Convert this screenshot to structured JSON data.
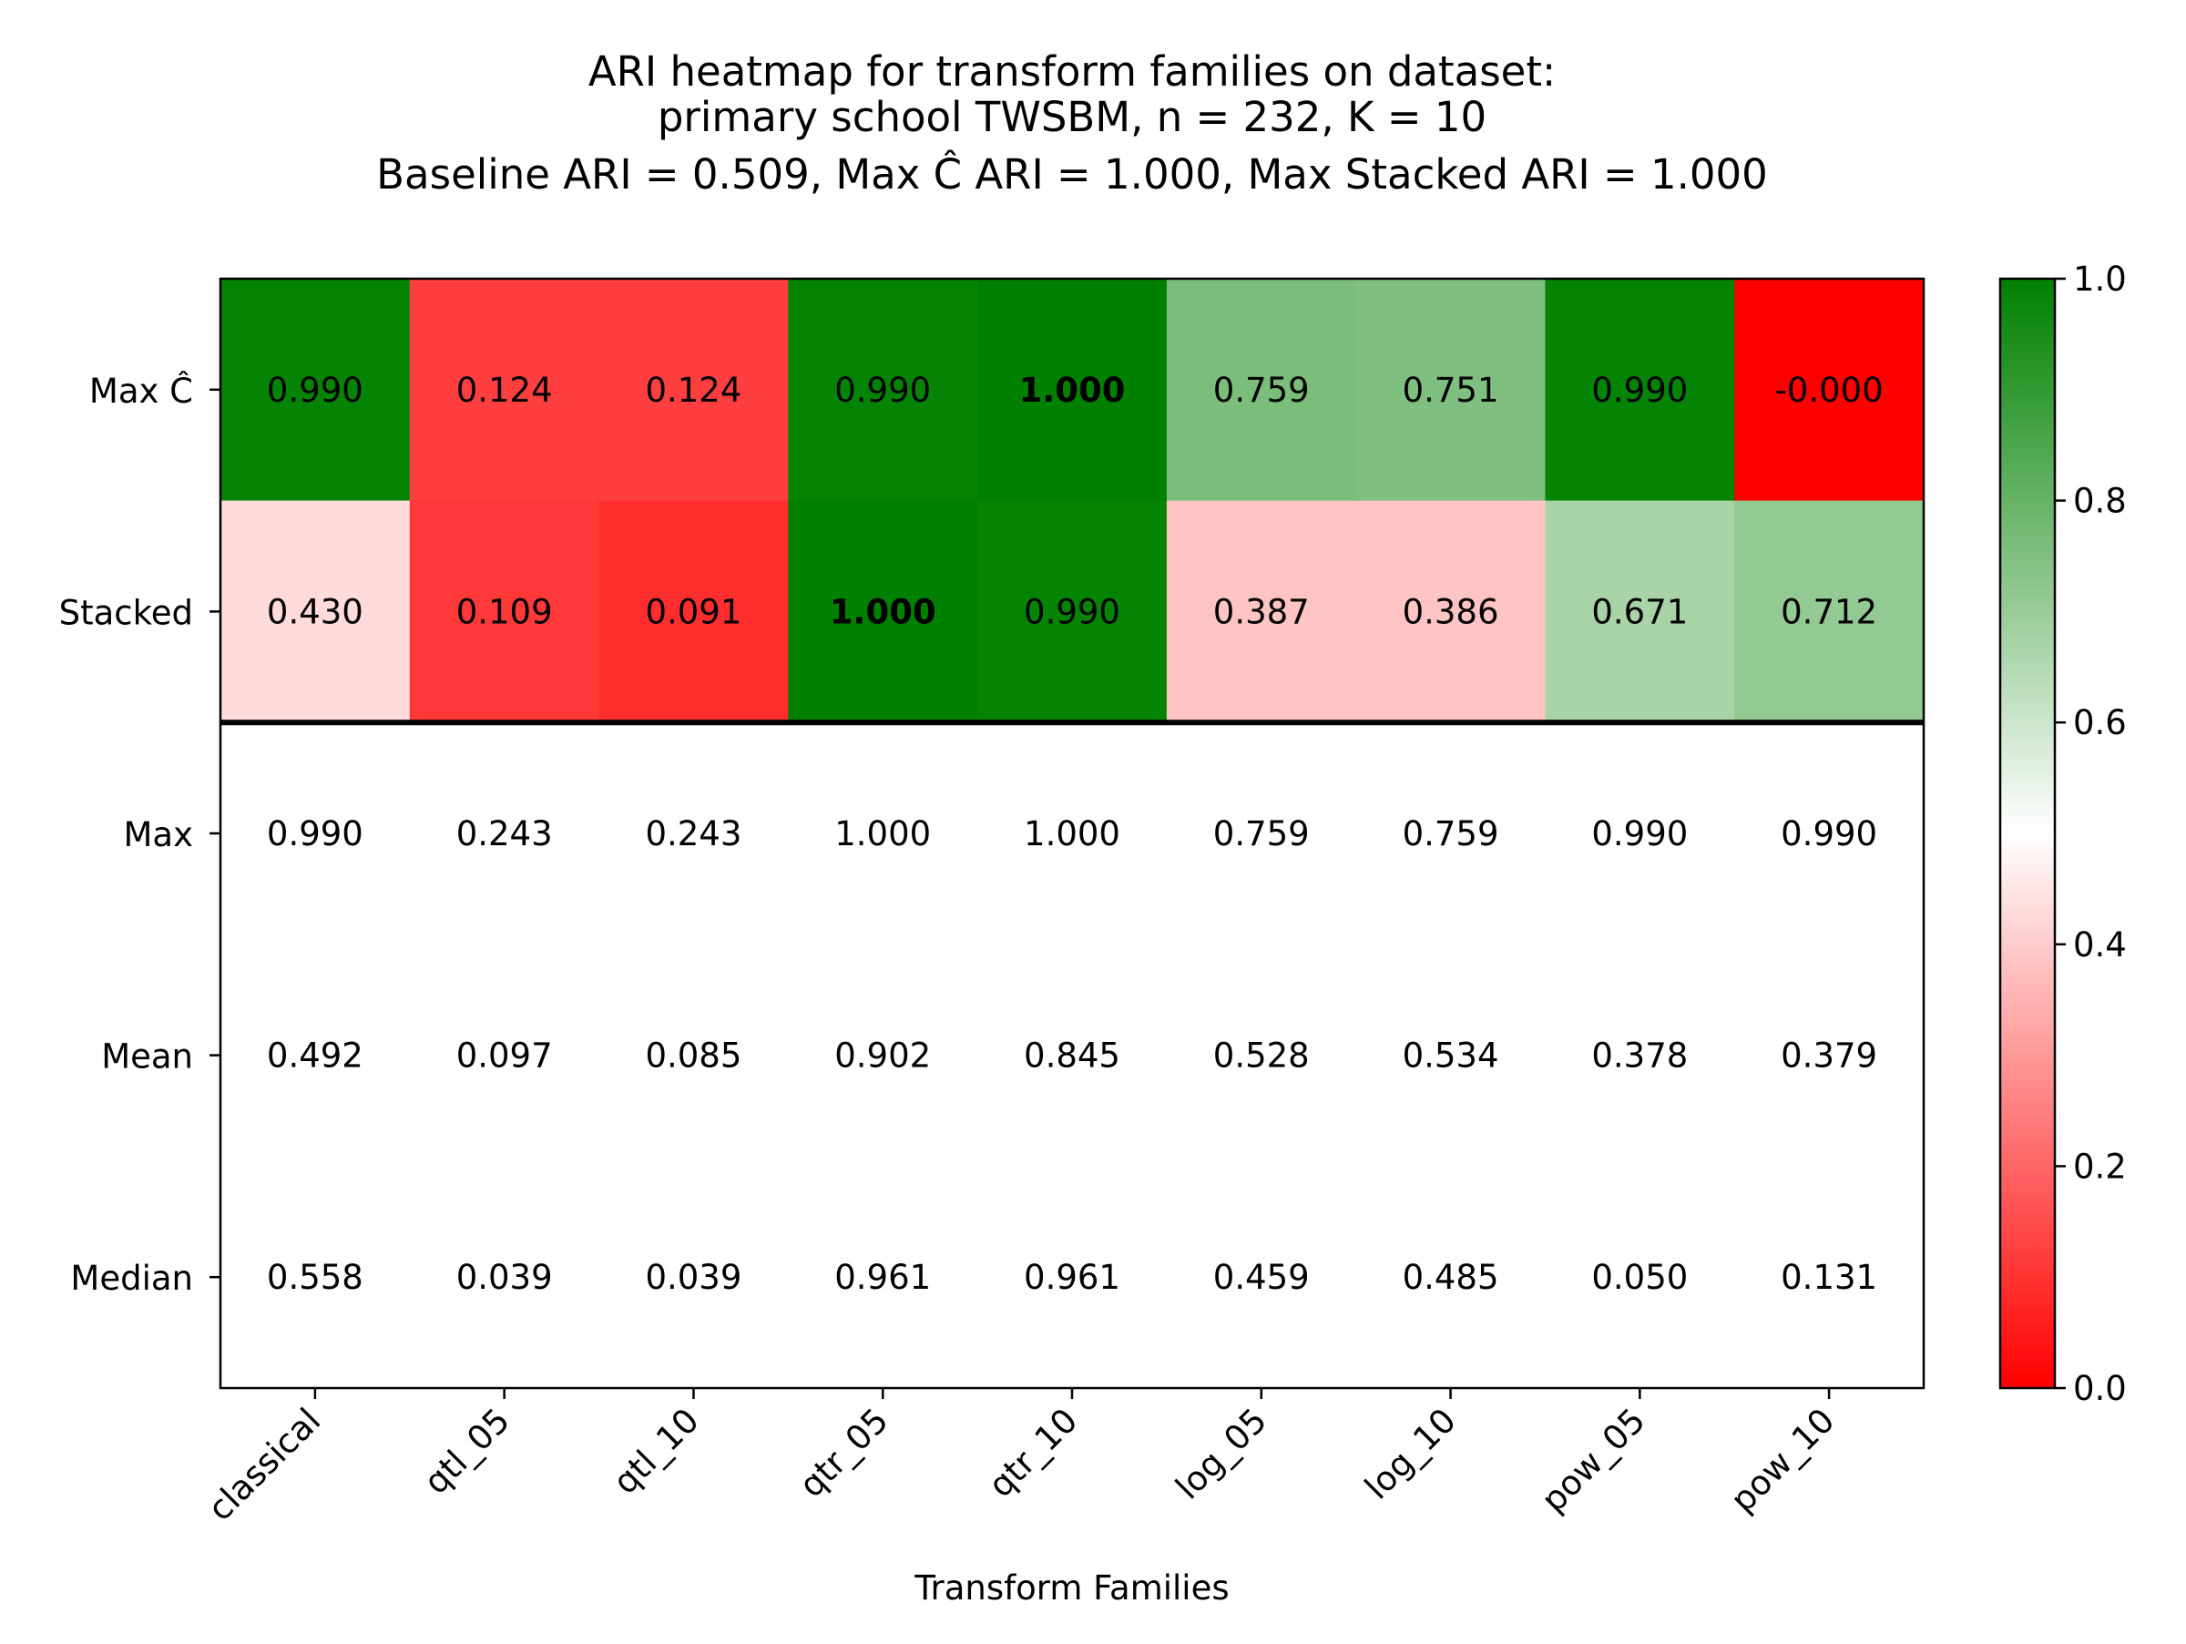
{
  "chart_data": {
    "type": "heatmap",
    "title_lines": [
      "ARI heatmap for transform families on dataset:",
      "primary school TWSBM, n = 232, K = 10",
      "Baseline ARI = 0.509, Max Ĉ ARI = 1.000, Max Stacked ARI = 1.000"
    ],
    "xlabel": "Transform Families",
    "ylabel": "",
    "columns": [
      "classical",
      "qtl_05",
      "qtl_10",
      "qtr_05",
      "qtr_10",
      "log_05",
      "log_10",
      "pow_05",
      "pow_10"
    ],
    "rows": [
      {
        "name": "Max Ĉ",
        "colored": true,
        "values": [
          0.99,
          0.124,
          0.124,
          0.99,
          1.0,
          0.759,
          0.751,
          0.99,
          -0.0
        ],
        "labels": [
          "0.990",
          "0.124",
          "0.124",
          "0.990",
          "1.000",
          "0.759",
          "0.751",
          "0.990",
          "-0.000"
        ],
        "bold_index": 4
      },
      {
        "name": "Stacked",
        "colored": true,
        "values": [
          0.43,
          0.109,
          0.091,
          1.0,
          0.99,
          0.387,
          0.386,
          0.671,
          0.712
        ],
        "labels": [
          "0.430",
          "0.109",
          "0.091",
          "1.000",
          "0.990",
          "0.387",
          "0.386",
          "0.671",
          "0.712"
        ],
        "bold_index": 3
      },
      {
        "name": "Max",
        "colored": false,
        "values": [
          0.99,
          0.243,
          0.243,
          1.0,
          1.0,
          0.759,
          0.759,
          0.99,
          0.99
        ],
        "labels": [
          "0.990",
          "0.243",
          "0.243",
          "1.000",
          "1.000",
          "0.759",
          "0.759",
          "0.990",
          "0.990"
        ]
      },
      {
        "name": "Mean",
        "colored": false,
        "values": [
          0.492,
          0.097,
          0.085,
          0.902,
          0.845,
          0.528,
          0.534,
          0.378,
          0.379
        ],
        "labels": [
          "0.492",
          "0.097",
          "0.085",
          "0.902",
          "0.845",
          "0.528",
          "0.534",
          "0.378",
          "0.379"
        ]
      },
      {
        "name": "Median",
        "colored": false,
        "values": [
          0.558,
          0.039,
          0.039,
          0.961,
          0.961,
          0.459,
          0.485,
          0.05,
          0.131
        ],
        "labels": [
          "0.558",
          "0.039",
          "0.039",
          "0.961",
          "0.961",
          "0.459",
          "0.485",
          "0.050",
          "0.131"
        ]
      }
    ],
    "colormap": {
      "low": "#ff0000",
      "mid": "#ffffff",
      "high": "#008000"
    },
    "colorbar": {
      "range": [
        0.0,
        1.0
      ],
      "ticks": [
        0.0,
        0.2,
        0.4,
        0.6,
        0.8,
        1.0
      ],
      "tick_labels": [
        "0.0",
        "0.2",
        "0.4",
        "0.6",
        "0.8",
        "1.0"
      ]
    },
    "separator_after_row": "Stacked",
    "grid": false,
    "legend": "colorbar right"
  }
}
